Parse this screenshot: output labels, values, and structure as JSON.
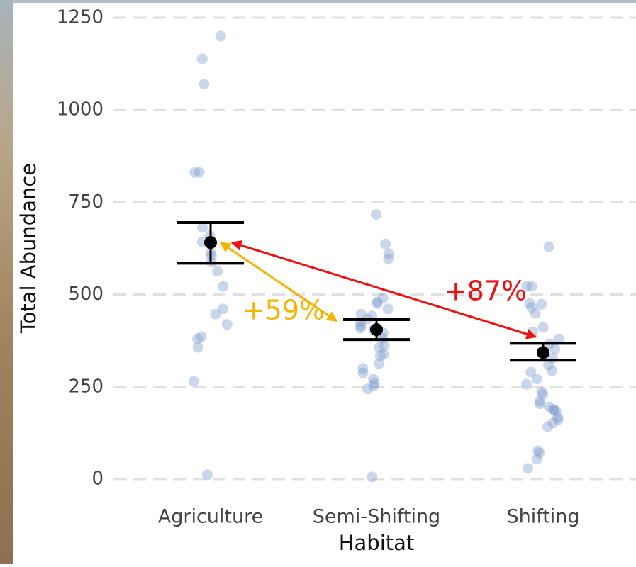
{
  "chart_data": {
    "type": "strip",
    "x_label": "Habitat",
    "y_label": "Total Abundance",
    "categories": [
      "Agriculture",
      "Semi-Shifting",
      "Shifting"
    ],
    "points": [
      [
        1200,
        1139,
        1070,
        831,
        831,
        682,
        659,
        643,
        614,
        605,
        588,
        563,
        522,
        461,
        447,
        419,
        386,
        380,
        357,
        265,
        12
      ],
      [
        717,
        637,
        611,
        597,
        491,
        480,
        476,
        461,
        447,
        442,
        434,
        424,
        415,
        409,
        405,
        401,
        396,
        382,
        361,
        357,
        338,
        334,
        313,
        300,
        288,
        271,
        259,
        252,
        244,
        6
      ],
      [
        630,
        522,
        522,
        476,
        474,
        465,
        449,
        411,
        399,
        380,
        367,
        353,
        338,
        328,
        309,
        294,
        290,
        271,
        257,
        236,
        230,
        211,
        204,
        196,
        188,
        188,
        184,
        167,
        161,
        152,
        142,
        77,
        71,
        54,
        29
      ]
    ],
    "point_color": "#7b9ccd",
    "means": [
      641,
      405,
      343
    ],
    "lower": [
      585,
      378,
      322
    ],
    "upper": [
      695,
      432,
      368
    ],
    "annotations": [
      {
        "text": "+59%",
        "color": "#f5b400"
      },
      {
        "text": "+87%",
        "color": "#ee1111"
      }
    ],
    "ylim": [
      0,
      1250
    ],
    "yticks": [
      0,
      250,
      500,
      750,
      1000,
      1250
    ],
    "grid": true
  }
}
